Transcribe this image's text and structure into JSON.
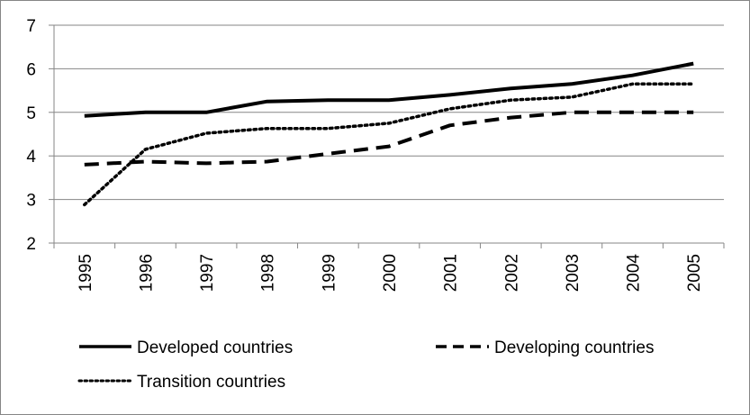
{
  "chart_data": {
    "type": "line",
    "title": "",
    "xlabel": "",
    "ylabel": "",
    "x": [
      "1995",
      "1996",
      "1997",
      "1998",
      "1999",
      "2000",
      "2001",
      "2002",
      "2003",
      "2004",
      "2005"
    ],
    "ylim": [
      2,
      7
    ],
    "yticks": [
      "2",
      "3",
      "4",
      "5",
      "6",
      "7"
    ],
    "grid": "horizontal",
    "legend_position": "bottom",
    "series": [
      {
        "name": "Developed countries",
        "style": "solid",
        "color": "#000000",
        "values": [
          4.92,
          5.0,
          5.0,
          5.25,
          5.28,
          5.28,
          5.4,
          5.55,
          5.65,
          5.85,
          6.12
        ]
      },
      {
        "name": "Developing countries",
        "style": "dashed",
        "color": "#000000",
        "values": [
          3.8,
          3.87,
          3.83,
          3.87,
          4.05,
          4.22,
          4.7,
          4.88,
          5.0,
          5.0,
          5.0
        ]
      },
      {
        "name": "Transition countries",
        "style": "dotted",
        "color": "#000000",
        "values": [
          2.88,
          4.15,
          4.52,
          4.63,
          4.63,
          4.75,
          5.08,
          5.28,
          5.35,
          5.65,
          5.65
        ]
      }
    ]
  }
}
